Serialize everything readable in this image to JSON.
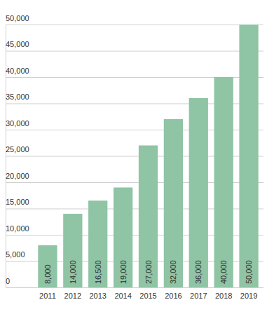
{
  "chart_data": {
    "type": "bar",
    "categories": [
      "2011",
      "2012",
      "2013",
      "2014",
      "2015",
      "2016",
      "2017",
      "2018",
      "2019"
    ],
    "values": [
      8000,
      14000,
      16500,
      19000,
      27000,
      32000,
      36000,
      40000,
      50000
    ],
    "value_labels": [
      "8,000",
      "14,000",
      "16,500",
      "19,000",
      "27,000",
      "32,000",
      "36,000",
      "40,000",
      "50,000"
    ],
    "color": "#8fc4a5",
    "ylim": [
      0,
      50000
    ],
    "yticks": [
      0,
      {
        "value": 5000,
        "label": "5,000"
      },
      {
        "value": 10000,
        "label": "10,000"
      },
      {
        "value": 15000,
        "label": "15,000"
      },
      {
        "value": 20000,
        "label": "20,000"
      },
      {
        "value": 25000,
        "label": "25,000"
      },
      {
        "value": 30000,
        "label": "30,000"
      },
      {
        "value": 35000,
        "label": "35,000"
      },
      {
        "value": 40000,
        "label": "40,000"
      },
      {
        "value": 45000,
        "label": "45,000"
      },
      {
        "value": 50000,
        "label": "50,000"
      }
    ],
    "grid": true,
    "data_labels": true
  }
}
